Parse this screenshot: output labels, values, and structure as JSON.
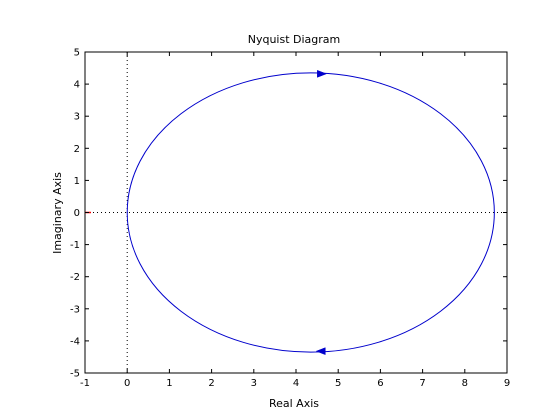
{
  "chart_data": {
    "type": "line",
    "title": "Nyquist Diagram",
    "xlabel": "Real Axis",
    "ylabel": "Imaginary Axis",
    "xlim": [
      -1,
      9
    ],
    "ylim": [
      -5,
      5
    ],
    "xticks": [
      -1,
      0,
      1,
      2,
      3,
      4,
      5,
      6,
      7,
      8,
      9
    ],
    "yticks": [
      -5,
      -4,
      -3,
      -2,
      -1,
      0,
      1,
      2,
      3,
      4,
      5
    ],
    "grid": false,
    "series": [
      {
        "color": "#0000cc",
        "shape": "circle",
        "center": [
          4.35,
          0
        ],
        "radius": 4.35,
        "arrows": [
          {
            "x": 4.6,
            "y": 4.32,
            "direction": "right"
          },
          {
            "x": 4.6,
            "y": -4.32,
            "direction": "left"
          }
        ]
      }
    ],
    "reference_lines": [
      {
        "type": "vertical",
        "x": 0,
        "style": "dotted",
        "color": "#000000"
      },
      {
        "type": "horizontal",
        "y": 0,
        "style": "dotted",
        "color": "#000000"
      }
    ],
    "critical_point": {
      "x": -1,
      "y": 0,
      "color": "#ff0000"
    }
  }
}
